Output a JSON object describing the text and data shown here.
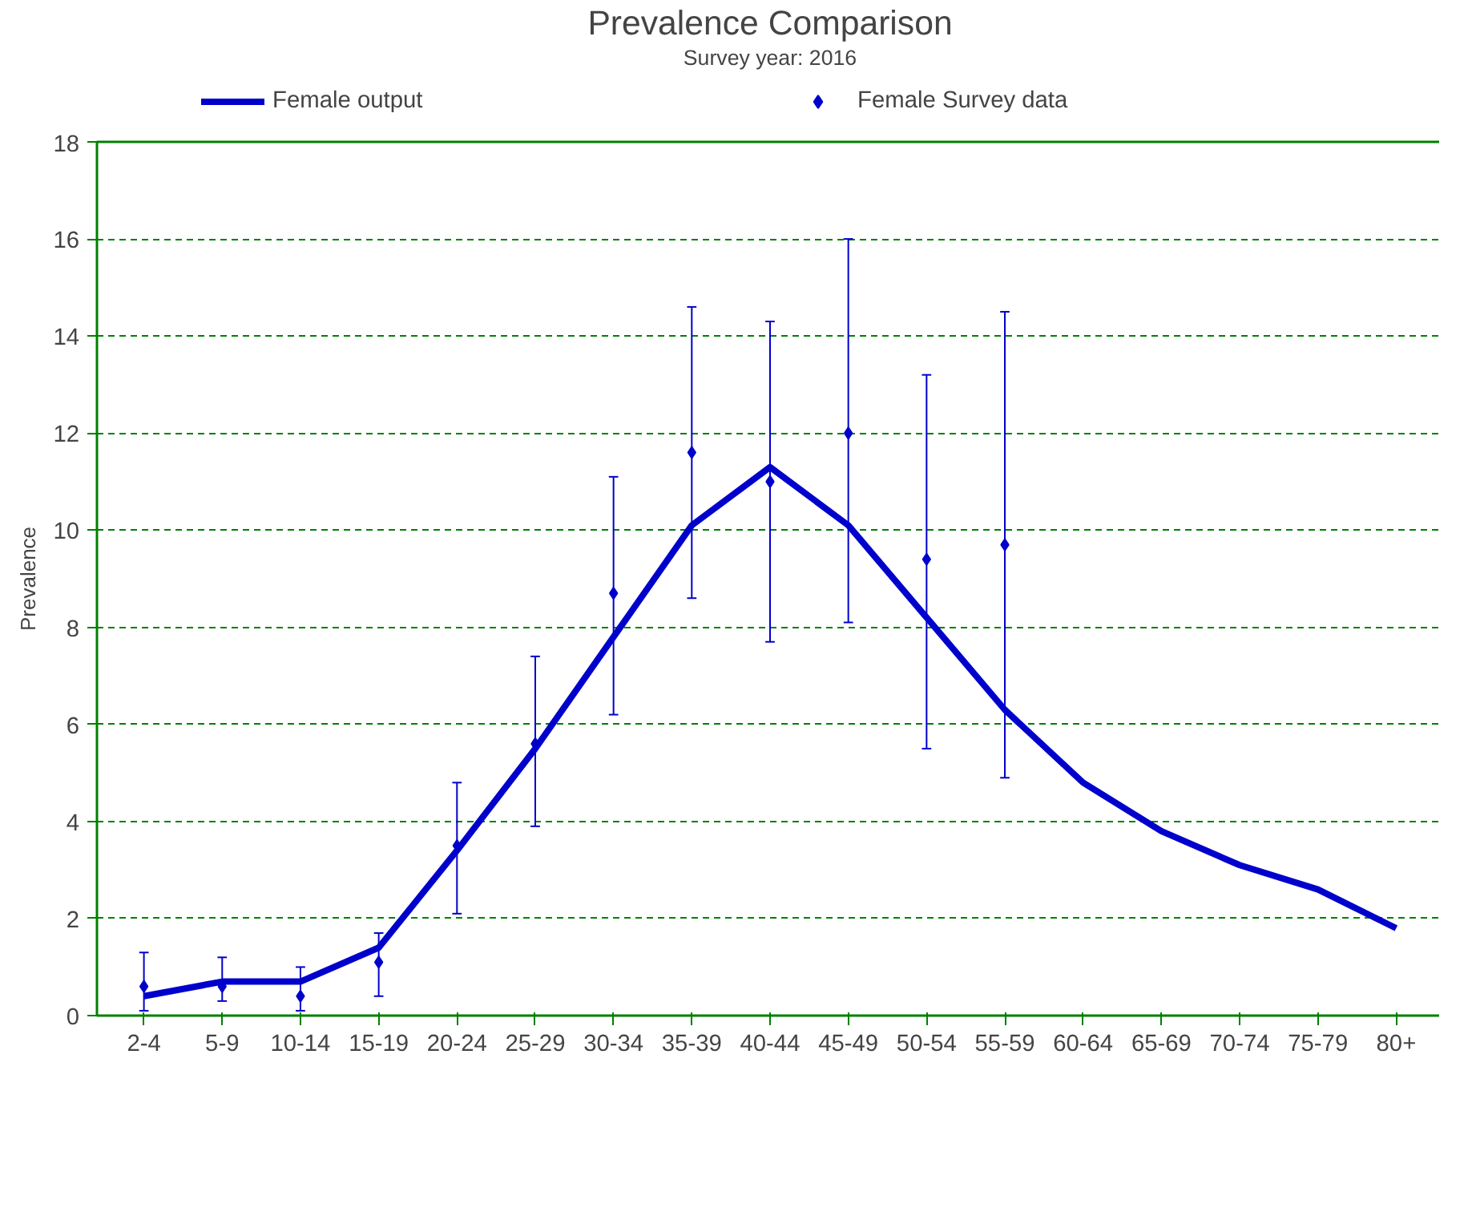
{
  "chart_data": {
    "type": "line",
    "title": "Prevalence Comparison",
    "subtitle": "Survey year: 2016",
    "ylabel": "Prevalence",
    "categories": [
      "2-4",
      "5-9",
      "10-14",
      "15-19",
      "20-24",
      "25-29",
      "30-34",
      "35-39",
      "40-44",
      "45-49",
      "50-54",
      "55-59",
      "60-64",
      "65-69",
      "70-74",
      "75-79",
      "80+"
    ],
    "series": [
      {
        "name": "Female output",
        "color": "#0000cc",
        "values": [
          0.4,
          0.7,
          0.7,
          1.4,
          3.4,
          5.5,
          7.8,
          10.1,
          11.3,
          10.1,
          8.2,
          6.3,
          4.8,
          3.8,
          3.1,
          2.6,
          1.8
        ]
      },
      {
        "name": "Female Survey data",
        "type": "scatter",
        "marker": "diamond",
        "color": "#0000cc",
        "values": [
          0.6,
          0.6,
          0.4,
          1.1,
          3.5,
          5.6,
          8.7,
          11.6,
          11.0,
          12.0,
          9.4,
          9.7,
          null,
          null,
          null,
          null,
          null
        ],
        "errors": [
          [
            0.1,
            1.3
          ],
          [
            0.3,
            1.2
          ],
          [
            0.1,
            1.0
          ],
          [
            0.4,
            1.7
          ],
          [
            2.1,
            4.8
          ],
          [
            3.9,
            7.4
          ],
          [
            6.2,
            11.1
          ],
          [
            8.6,
            14.6
          ],
          [
            7.7,
            14.3
          ],
          [
            8.1,
            16.0
          ],
          [
            5.5,
            13.2
          ],
          [
            4.9,
            14.5
          ],
          null,
          null,
          null,
          null,
          null
        ]
      }
    ],
    "ylim": [
      0,
      18
    ],
    "yticks": [
      0,
      2,
      4,
      6,
      8,
      10,
      12,
      14,
      16,
      18
    ],
    "grid": "y",
    "legend": "top",
    "line_style": "solid"
  }
}
